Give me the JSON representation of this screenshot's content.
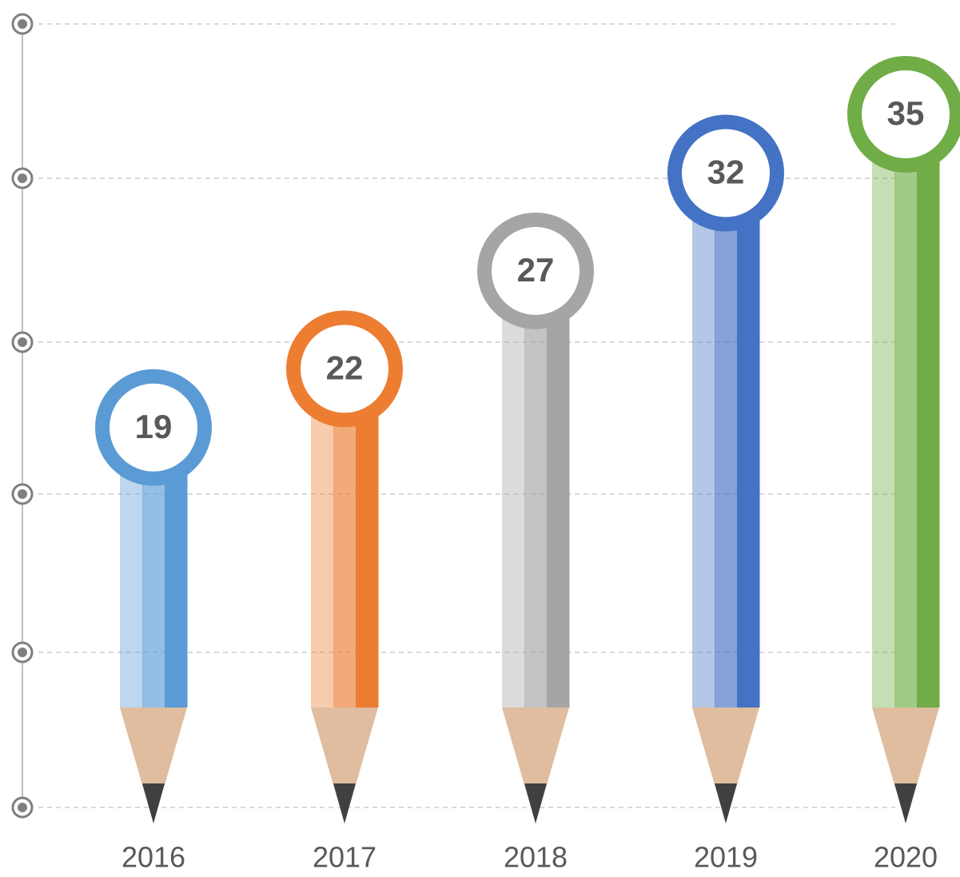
{
  "chart_data": {
    "type": "bar",
    "categories": [
      "2016",
      "2017",
      "2018",
      "2019",
      "2020"
    ],
    "values": [
      19,
      22,
      27,
      32,
      35
    ],
    "colors": [
      "#5b9bd5",
      "#ed7d31",
      "#a5a5a5",
      "#4472c4",
      "#70ad47"
    ]
  }
}
